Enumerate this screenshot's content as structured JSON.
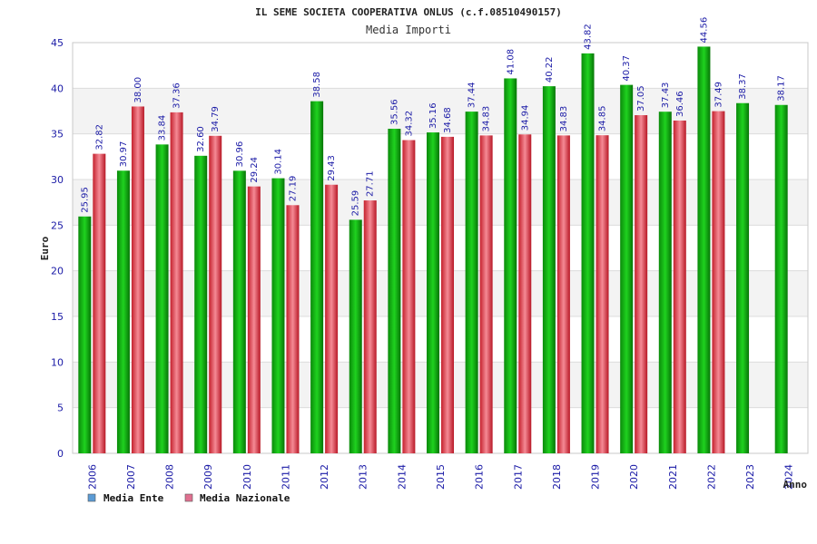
{
  "chart_data": {
    "type": "bar",
    "title": "IL SEME SOCIETA COOPERATIVA ONLUS (c.f.08510490157)",
    "subtitle": "Media Importi",
    "xlabel": "Anno",
    "ylabel": "Euro",
    "ylim": [
      0,
      45
    ],
    "yticks": [
      "0",
      "5",
      "10",
      "15",
      "20",
      "25",
      "30",
      "35",
      "40",
      "45"
    ],
    "categories": [
      "2006",
      "2007",
      "2008",
      "2009",
      "2010",
      "2011",
      "2012",
      "2013",
      "2014",
      "2015",
      "2016",
      "2017",
      "2018",
      "2019",
      "2020",
      "2021",
      "2022",
      "2023",
      "2024"
    ],
    "series": [
      {
        "name": "Media Ente",
        "color": "#00b000",
        "values": [
          25.95,
          30.97,
          33.84,
          32.6,
          30.96,
          30.14,
          38.58,
          25.59,
          35.56,
          35.16,
          37.44,
          41.08,
          40.22,
          43.82,
          40.37,
          37.43,
          44.56,
          38.37,
          38.17
        ],
        "labels": [
          "25.95",
          "30.97",
          "33.84",
          "32.60",
          "30.96",
          "30.14",
          "38.58",
          "25.59",
          "35.56",
          "35.16",
          "37.44",
          "41.08",
          "40.22",
          "43.82",
          "40.37",
          "37.43",
          "44.56",
          "38.37",
          "38.17"
        ]
      },
      {
        "name": "Media Nazionale",
        "color": "#e0303a",
        "values": [
          32.82,
          38.0,
          37.36,
          34.79,
          29.24,
          27.19,
          29.43,
          27.71,
          34.32,
          34.68,
          34.83,
          34.94,
          34.83,
          34.85,
          37.05,
          36.46,
          37.49,
          null,
          null
        ],
        "labels": [
          "32.82",
          "38.00",
          "37.36",
          "34.79",
          "29.24",
          "27.19",
          "29.43",
          "27.71",
          "34.32",
          "34.68",
          "34.83",
          "34.94",
          "34.83",
          "34.85",
          "37.05",
          "36.46",
          "37.49",
          null,
          null
        ]
      }
    ],
    "legend": [
      {
        "label": "Media Ente",
        "color": "#5b9bd5"
      },
      {
        "label": "Media Nazionale",
        "color": "#e07090"
      }
    ],
    "grid": true,
    "legend_position": "bottom-left"
  }
}
